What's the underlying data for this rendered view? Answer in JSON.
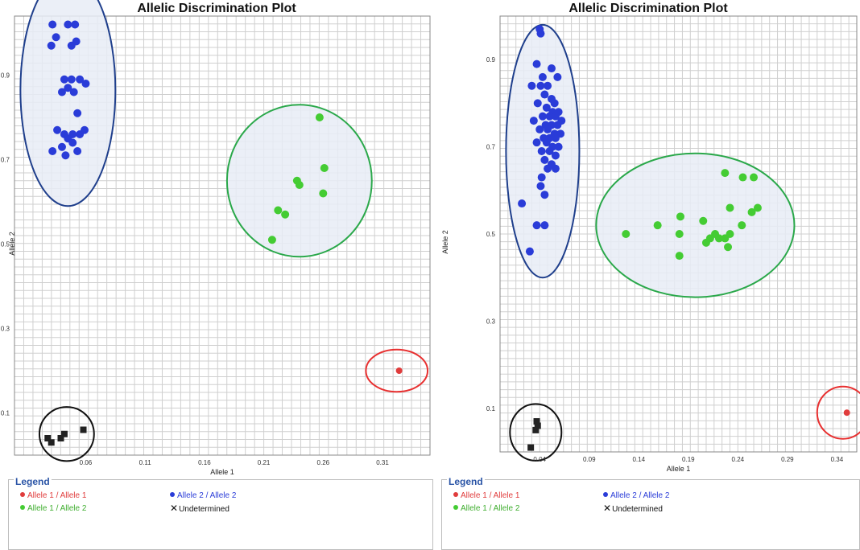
{
  "chart_data": [
    {
      "type": "scatter",
      "title": "Allelic Discrimination Plot",
      "xlabel": "Allele 1",
      "ylabel": "Allele 2",
      "xlim": [
        0.0,
        0.35
      ],
      "ylim": [
        0.0,
        1.04
      ],
      "x_ticks": [
        "0.06",
        "0.11",
        "0.16",
        "0.21",
        "0.26",
        "0.31"
      ],
      "y_ticks": [
        "0.1",
        "0.3",
        "0.5",
        "0.7",
        "0.9"
      ],
      "grid": true,
      "legend_title": "Legend",
      "legend": [
        {
          "label": "Allele 1 / Allele 1",
          "color": "#e03c3c",
          "marker": "dot"
        },
        {
          "label": "Allele 2 / Allele 2",
          "color": "#2a3cd8",
          "marker": "dot"
        },
        {
          "label": "Allele 1 / Allele 2",
          "color": "#44cc33",
          "marker": "dot"
        },
        {
          "label": "Undetermined",
          "color": "#111111",
          "marker": "x"
        }
      ],
      "series": [
        {
          "name": "Allele 2 / Allele 2",
          "color": "#2a3cd8",
          "marker": "circle",
          "points": [
            [
              0.032,
              1.02
            ],
            [
              0.045,
              1.02
            ],
            [
              0.051,
              1.02
            ],
            [
              0.035,
              0.99
            ],
            [
              0.031,
              0.97
            ],
            [
              0.048,
              0.97
            ],
            [
              0.052,
              0.98
            ],
            [
              0.042,
              0.89
            ],
            [
              0.048,
              0.89
            ],
            [
              0.055,
              0.89
            ],
            [
              0.06,
              0.88
            ],
            [
              0.045,
              0.87
            ],
            [
              0.04,
              0.86
            ],
            [
              0.05,
              0.86
            ],
            [
              0.053,
              0.81
            ],
            [
              0.036,
              0.77
            ],
            [
              0.042,
              0.76
            ],
            [
              0.049,
              0.76
            ],
            [
              0.055,
              0.76
            ],
            [
              0.059,
              0.77
            ],
            [
              0.045,
              0.75
            ],
            [
              0.049,
              0.74
            ],
            [
              0.04,
              0.73
            ],
            [
              0.032,
              0.72
            ],
            [
              0.053,
              0.72
            ],
            [
              0.043,
              0.71
            ]
          ]
        },
        {
          "name": "Allele 1 / Allele 2",
          "color": "#44cc33",
          "marker": "circle",
          "points": [
            [
              0.257,
              0.8
            ],
            [
              0.238,
              0.65
            ],
            [
              0.24,
              0.64
            ],
            [
              0.261,
              0.68
            ],
            [
              0.26,
              0.62
            ],
            [
              0.222,
              0.58
            ],
            [
              0.228,
              0.57
            ],
            [
              0.217,
              0.51
            ]
          ]
        },
        {
          "name": "Allele 1 / Allele 1",
          "color": "#e03c3c",
          "marker": "circle",
          "points": [
            [
              0.324,
              0.2
            ]
          ]
        },
        {
          "name": "Undetermined",
          "color": "#222222",
          "marker": "square",
          "points": [
            [
              0.028,
              0.04
            ],
            [
              0.031,
              0.03
            ],
            [
              0.039,
              0.04
            ],
            [
              0.042,
              0.05
            ],
            [
              0.058,
              0.06
            ]
          ]
        }
      ],
      "clusters": [
        {
          "name": "Allele 2 / Allele 2",
          "stroke": "#1f3f8c",
          "fill": "#e8ecf6",
          "center": [
            0.045,
            0.865
          ],
          "radii": [
            0.04,
            0.275
          ]
        },
        {
          "name": "Allele 1 / Allele 2",
          "stroke": "#2aa84a",
          "fill": "#e8ecf6",
          "center": [
            0.24,
            0.65
          ],
          "radii": [
            0.061,
            0.18
          ]
        },
        {
          "name": "Allele 1 / Allele 1",
          "stroke": "#e83030",
          "fill": "none",
          "center": [
            0.322,
            0.2
          ],
          "radii": [
            0.026,
            0.05
          ]
        },
        {
          "name": "Undetermined",
          "stroke": "#111111",
          "fill": "none",
          "center": [
            0.044,
            0.05
          ],
          "radii": [
            0.023,
            0.064
          ]
        }
      ]
    },
    {
      "type": "scatter",
      "title": "Allelic Discrimination Plot",
      "xlabel": "Allele 1",
      "ylabel": "Allele 2",
      "xlim": [
        0.0,
        0.36
      ],
      "ylim": [
        0.0,
        1.0
      ],
      "x_ticks": [
        "0.04",
        "0.09",
        "0.14",
        "0.19",
        "0.24",
        "0.29",
        "0.34"
      ],
      "y_ticks": [
        "0.1",
        "0.3",
        "0.5",
        "0.7",
        "0.9"
      ],
      "grid": true,
      "legend_title": "Legend",
      "legend": [
        {
          "label": "Allele 1 / Allele 1",
          "color": "#e03c3c",
          "marker": "dot"
        },
        {
          "label": "Allele 2 / Allele 2",
          "color": "#2a3cd8",
          "marker": "dot"
        },
        {
          "label": "Allele 1 / Allele 2",
          "color": "#44cc33",
          "marker": "dot"
        },
        {
          "label": "Undetermined",
          "color": "#111111",
          "marker": "x"
        }
      ],
      "series": [
        {
          "name": "Allele 2 / Allele 2",
          "color": "#2a3cd8",
          "marker": "circle",
          "points": [
            [
              0.04,
              0.97
            ],
            [
              0.041,
              0.96
            ],
            [
              0.037,
              0.89
            ],
            [
              0.052,
              0.88
            ],
            [
              0.043,
              0.86
            ],
            [
              0.058,
              0.86
            ],
            [
              0.032,
              0.84
            ],
            [
              0.041,
              0.84
            ],
            [
              0.048,
              0.84
            ],
            [
              0.045,
              0.82
            ],
            [
              0.052,
              0.81
            ],
            [
              0.038,
              0.8
            ],
            [
              0.055,
              0.8
            ],
            [
              0.047,
              0.79
            ],
            [
              0.053,
              0.78
            ],
            [
              0.059,
              0.78
            ],
            [
              0.043,
              0.77
            ],
            [
              0.05,
              0.77
            ],
            [
              0.056,
              0.77
            ],
            [
              0.062,
              0.76
            ],
            [
              0.034,
              0.76
            ],
            [
              0.046,
              0.75
            ],
            [
              0.052,
              0.75
            ],
            [
              0.058,
              0.75
            ],
            [
              0.04,
              0.74
            ],
            [
              0.048,
              0.74
            ],
            [
              0.055,
              0.73
            ],
            [
              0.061,
              0.73
            ],
            [
              0.044,
              0.72
            ],
            [
              0.05,
              0.72
            ],
            [
              0.056,
              0.72
            ],
            [
              0.037,
              0.71
            ],
            [
              0.047,
              0.71
            ],
            [
              0.053,
              0.7
            ],
            [
              0.059,
              0.7
            ],
            [
              0.042,
              0.69
            ],
            [
              0.05,
              0.69
            ],
            [
              0.056,
              0.68
            ],
            [
              0.045,
              0.67
            ],
            [
              0.052,
              0.66
            ],
            [
              0.048,
              0.65
            ],
            [
              0.056,
              0.65
            ],
            [
              0.042,
              0.63
            ],
            [
              0.041,
              0.61
            ],
            [
              0.045,
              0.59
            ],
            [
              0.022,
              0.57
            ],
            [
              0.037,
              0.52
            ],
            [
              0.045,
              0.52
            ],
            [
              0.03,
              0.46
            ]
          ]
        },
        {
          "name": "Allele 1 / Allele 2",
          "color": "#44cc33",
          "marker": "circle",
          "points": [
            [
              0.227,
              0.64
            ],
            [
              0.245,
              0.63
            ],
            [
              0.256,
              0.63
            ],
            [
              0.232,
              0.56
            ],
            [
              0.26,
              0.56
            ],
            [
              0.254,
              0.55
            ],
            [
              0.182,
              0.54
            ],
            [
              0.205,
              0.53
            ],
            [
              0.244,
              0.52
            ],
            [
              0.159,
              0.52
            ],
            [
              0.127,
              0.5
            ],
            [
              0.181,
              0.5
            ],
            [
              0.217,
              0.5
            ],
            [
              0.221,
              0.49
            ],
            [
              0.227,
              0.49
            ],
            [
              0.232,
              0.5
            ],
            [
              0.212,
              0.49
            ],
            [
              0.208,
              0.48
            ],
            [
              0.23,
              0.47
            ],
            [
              0.181,
              0.45
            ]
          ]
        },
        {
          "name": "Allele 1 / Allele 1",
          "color": "#e03c3c",
          "marker": "circle",
          "points": [
            [
              0.35,
              0.09
            ]
          ]
        },
        {
          "name": "Undetermined",
          "color": "#222222",
          "marker": "square",
          "points": [
            [
              0.037,
              0.07
            ],
            [
              0.038,
              0.06
            ],
            [
              0.036,
              0.05
            ],
            [
              0.031,
              0.01
            ]
          ]
        }
      ],
      "clusters": [
        {
          "name": "Allele 2 / Allele 2",
          "stroke": "#1f3f8c",
          "fill": "#e8ecf6",
          "center": [
            0.043,
            0.69
          ],
          "radii": [
            0.037,
            0.29
          ]
        },
        {
          "name": "Allele 1 / Allele 2",
          "stroke": "#2aa84a",
          "fill": "#e8ecf6",
          "center": [
            0.197,
            0.52
          ],
          "radii": [
            0.1,
            0.165
          ]
        },
        {
          "name": "Allele 1 / Allele 1",
          "stroke": "#e83030",
          "fill": "none",
          "center": [
            0.346,
            0.09
          ],
          "radii": [
            0.026,
            0.06
          ]
        },
        {
          "name": "Undetermined",
          "stroke": "#111111",
          "fill": "none",
          "center": [
            0.036,
            0.045
          ],
          "radii": [
            0.026,
            0.065
          ]
        }
      ]
    }
  ]
}
